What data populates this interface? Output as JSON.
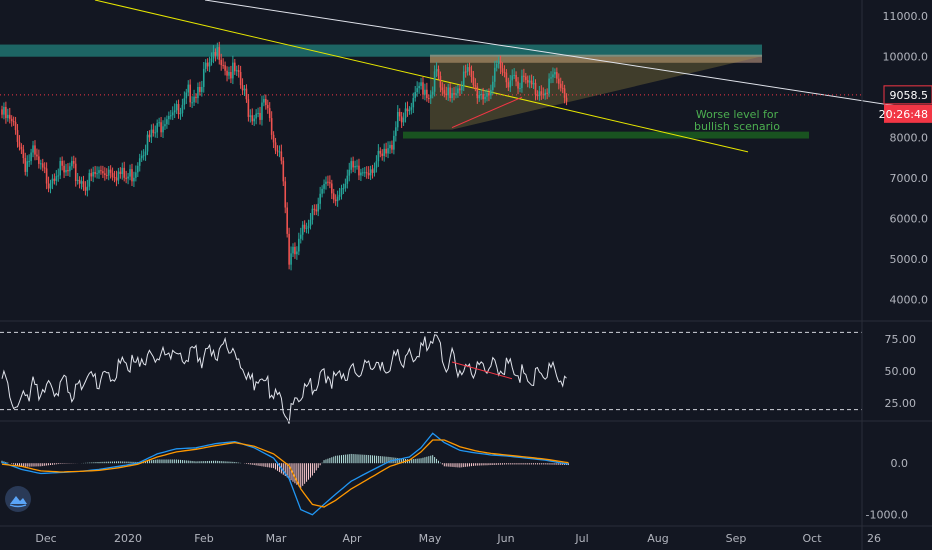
{
  "chart_data": [
    {
      "type": "candlestick",
      "pane": "price",
      "title": "",
      "x_labels": [
        "Dec",
        "2020",
        "Feb",
        "Mar",
        "Apr",
        "May",
        "Jun",
        "Jul",
        "Aug",
        "Sep",
        "Oct",
        "26"
      ],
      "y_ticks": [
        "11000.0",
        "10000.0",
        "8000.0",
        "7000.0",
        "6000.0",
        "5000.0",
        "4000.0"
      ],
      "ylim": [
        3500,
        11400
      ],
      "last_price": "9058.5",
      "countdown": "20:26:48",
      "annotation": [
        "Worse level for",
        "bullish scenario"
      ],
      "close_path": [
        [
          0,
          8700
        ],
        [
          4,
          8500
        ],
        [
          8,
          8200
        ],
        [
          12,
          7500
        ],
        [
          16,
          7700
        ],
        [
          20,
          7300
        ],
        [
          24,
          7100
        ],
        [
          28,
          7400
        ],
        [
          32,
          7200
        ],
        [
          36,
          7300
        ],
        [
          40,
          7100
        ],
        [
          44,
          7000
        ],
        [
          48,
          7200
        ],
        [
          52,
          7300
        ],
        [
          56,
          7400
        ],
        [
          60,
          7250
        ],
        [
          64,
          7100
        ],
        [
          68,
          7300
        ],
        [
          72,
          7900
        ],
        [
          76,
          8100
        ],
        [
          80,
          8300
        ],
        [
          84,
          8700
        ],
        [
          88,
          8900
        ],
        [
          92,
          8600
        ],
        [
          96,
          9200
        ],
        [
          100,
          9300
        ],
        [
          104,
          9700
        ],
        [
          108,
          9900
        ],
        [
          112,
          10300
        ],
        [
          116,
          9800
        ],
        [
          120,
          9700
        ],
        [
          124,
          9300
        ],
        [
          128,
          8700
        ],
        [
          132,
          8800
        ],
        [
          136,
          8900
        ],
        [
          140,
          7900
        ],
        [
          144,
          7800
        ],
        [
          148,
          5100
        ],
        [
          152,
          5300
        ],
        [
          156,
          5900
        ],
        [
          160,
          6400
        ],
        [
          164,
          6700
        ],
        [
          168,
          6900
        ],
        [
          172,
          6600
        ],
        [
          176,
          7100
        ],
        [
          180,
          7300
        ],
        [
          184,
          7200
        ],
        [
          188,
          7400
        ],
        [
          192,
          7500
        ],
        [
          196,
          7600
        ],
        [
          200,
          7800
        ],
        [
          204,
          8800
        ],
        [
          208,
          8600
        ],
        [
          212,
          8900
        ],
        [
          216,
          9500
        ],
        [
          220,
          9200
        ],
        [
          224,
          9700
        ],
        [
          228,
          9000
        ],
        [
          232,
          9300
        ],
        [
          236,
          9500
        ],
        [
          240,
          9700
        ],
        [
          244,
          9300
        ],
        [
          248,
          9200
        ],
        [
          252,
          9400
        ],
        [
          256,
          9800
        ],
        [
          260,
          9600
        ],
        [
          264,
          9700
        ],
        [
          268,
          9500
        ],
        [
          272,
          9400
        ],
        [
          276,
          9300
        ],
        [
          280,
          9400
        ],
        [
          284,
          9600
        ],
        [
          288,
          9300
        ],
        [
          292,
          9100
        ]
      ],
      "horizontal_line": 9058.5
    },
    {
      "type": "line",
      "pane": "rsi",
      "y_ticks": [
        "75.00",
        "50.00",
        "25.00"
      ],
      "ylim": [
        12,
        88
      ],
      "bands": [
        80,
        20
      ],
      "values": [
        [
          0,
          48
        ],
        [
          4,
          40
        ],
        [
          8,
          22
        ],
        [
          12,
          35
        ],
        [
          16,
          42
        ],
        [
          20,
          38
        ],
        [
          24,
          45
        ],
        [
          28,
          40
        ],
        [
          32,
          44
        ],
        [
          36,
          38
        ],
        [
          40,
          42
        ],
        [
          44,
          52
        ],
        [
          48,
          46
        ],
        [
          52,
          50
        ],
        [
          56,
          48
        ],
        [
          60,
          55
        ],
        [
          64,
          62
        ],
        [
          68,
          58
        ],
        [
          72,
          66
        ],
        [
          76,
          62
        ],
        [
          80,
          70
        ],
        [
          84,
          64
        ],
        [
          88,
          72
        ],
        [
          92,
          60
        ],
        [
          96,
          66
        ],
        [
          100,
          70
        ],
        [
          104,
          62
        ],
        [
          108,
          72
        ],
        [
          112,
          68
        ],
        [
          116,
          74
        ],
        [
          120,
          64
        ],
        [
          124,
          58
        ],
        [
          128,
          42
        ],
        [
          132,
          50
        ],
        [
          136,
          44
        ],
        [
          140,
          38
        ],
        [
          144,
          30
        ],
        [
          148,
          18
        ],
        [
          152,
          30
        ],
        [
          156,
          40
        ],
        [
          160,
          44
        ],
        [
          164,
          48
        ],
        [
          168,
          50
        ],
        [
          172,
          45
        ],
        [
          176,
          52
        ],
        [
          180,
          55
        ],
        [
          184,
          52
        ],
        [
          188,
          56
        ],
        [
          192,
          58
        ],
        [
          196,
          54
        ],
        [
          200,
          60
        ],
        [
          204,
          64
        ],
        [
          208,
          62
        ],
        [
          212,
          66
        ],
        [
          216,
          72
        ],
        [
          220,
          78
        ],
        [
          224,
          80
        ],
        [
          228,
          58
        ],
        [
          232,
          64
        ],
        [
          236,
          55
        ],
        [
          240,
          52
        ],
        [
          244,
          58
        ],
        [
          248,
          54
        ],
        [
          252,
          60
        ],
        [
          256,
          56
        ],
        [
          260,
          58
        ],
        [
          264,
          54
        ],
        [
          268,
          52
        ],
        [
          272,
          48
        ],
        [
          276,
          52
        ],
        [
          280,
          50
        ],
        [
          284,
          56
        ],
        [
          288,
          50
        ],
        [
          292,
          44
        ]
      ]
    },
    {
      "type": "macd",
      "pane": "macd",
      "y_ticks": [
        "0.0",
        "-1000.0"
      ],
      "ylim": [
        -1200,
        800
      ],
      "series": [
        {
          "name": "",
          "color": "#2196f3",
          "values": [
            [
              0,
              20
            ],
            [
              10,
              -120
            ],
            [
              20,
              -200
            ],
            [
              30,
              -180
            ],
            [
              40,
              -160
            ],
            [
              50,
              -120
            ],
            [
              60,
              -60
            ],
            [
              70,
              0
            ],
            [
              80,
              180
            ],
            [
              90,
              280
            ],
            [
              100,
              300
            ],
            [
              110,
              380
            ],
            [
              120,
              420
            ],
            [
              130,
              300
            ],
            [
              140,
              100
            ],
            [
              148,
              -300
            ],
            [
              154,
              -900
            ],
            [
              160,
              -1000
            ],
            [
              166,
              -800
            ],
            [
              172,
              -600
            ],
            [
              180,
              -350
            ],
            [
              190,
              -150
            ],
            [
              200,
              40
            ],
            [
              210,
              120
            ],
            [
              216,
              300
            ],
            [
              222,
              580
            ],
            [
              228,
              400
            ],
            [
              236,
              250
            ],
            [
              244,
              200
            ],
            [
              252,
              160
            ],
            [
              260,
              140
            ],
            [
              270,
              100
            ],
            [
              280,
              60
            ],
            [
              292,
              -20
            ]
          ]
        },
        {
          "name": "",
          "color": "#ff9800",
          "values": [
            [
              0,
              -20
            ],
            [
              10,
              -60
            ],
            [
              20,
              -150
            ],
            [
              30,
              -170
            ],
            [
              40,
              -160
            ],
            [
              50,
              -140
            ],
            [
              60,
              -90
            ],
            [
              70,
              -20
            ],
            [
              80,
              120
            ],
            [
              90,
              220
            ],
            [
              100,
              270
            ],
            [
              110,
              340
            ],
            [
              120,
              400
            ],
            [
              130,
              330
            ],
            [
              140,
              180
            ],
            [
              148,
              -50
            ],
            [
              154,
              -500
            ],
            [
              160,
              -800
            ],
            [
              166,
              -850
            ],
            [
              172,
              -720
            ],
            [
              180,
              -500
            ],
            [
              190,
              -280
            ],
            [
              200,
              -60
            ],
            [
              210,
              60
            ],
            [
              216,
              220
            ],
            [
              222,
              450
            ],
            [
              228,
              450
            ],
            [
              236,
              320
            ],
            [
              244,
              240
            ],
            [
              252,
              190
            ],
            [
              260,
              160
            ],
            [
              270,
              120
            ],
            [
              280,
              80
            ],
            [
              292,
              10
            ]
          ]
        }
      ]
    }
  ]
}
